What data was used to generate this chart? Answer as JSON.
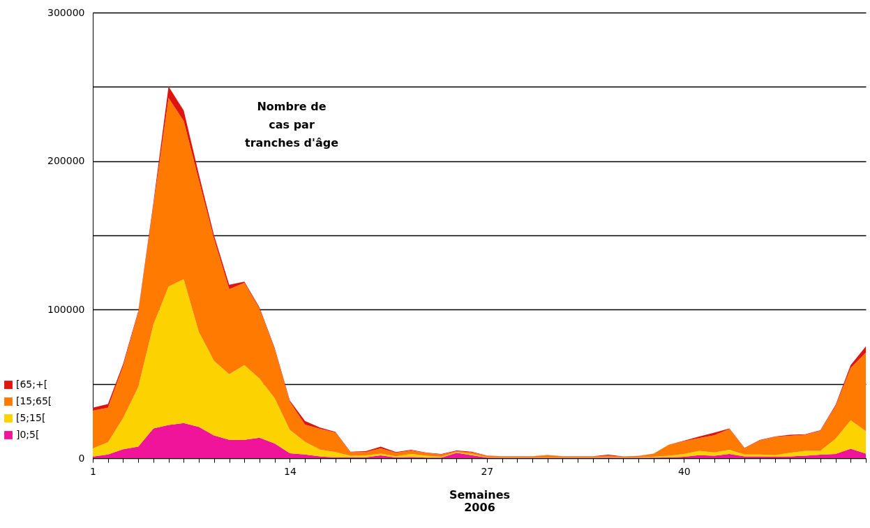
{
  "chart_data": {
    "type": "area",
    "title": "Nombre de\ncas par\ntranches d'âge",
    "xlabel": "Semaines\n2006",
    "stacked": true,
    "grid": "y",
    "legend": "bottom left",
    "x": [
      1,
      2,
      3,
      4,
      5,
      6,
      7,
      8,
      9,
      10,
      11,
      12,
      13,
      14,
      15,
      16,
      17,
      18,
      19,
      20,
      21,
      22,
      23,
      24,
      25,
      26,
      27,
      28,
      29,
      30,
      31,
      32,
      33,
      34,
      35,
      36,
      37,
      38,
      39,
      40,
      41,
      42,
      43,
      44,
      45,
      46,
      47,
      48,
      49,
      50,
      51,
      52
    ],
    "xlim": [
      1,
      52
    ],
    "xticks": [
      1,
      {
        "value": 2,
        "label": null
      },
      {
        "value": 3,
        "label": null
      },
      {
        "value": 4,
        "label": null
      },
      {
        "value": 5,
        "label": null
      },
      {
        "value": 6,
        "label": null
      },
      {
        "value": 7,
        "label": null
      },
      {
        "value": 8,
        "label": null
      },
      {
        "value": 9,
        "label": null
      },
      {
        "value": 10,
        "label": null
      },
      {
        "value": 11,
        "label": null
      },
      {
        "value": 12,
        "label": null
      },
      {
        "value": 13,
        "label": null
      },
      14,
      {
        "value": 15,
        "label": null
      },
      {
        "value": 16,
        "label": null
      },
      {
        "value": 17,
        "label": null
      },
      {
        "value": 18,
        "label": null
      },
      {
        "value": 19,
        "label": null
      },
      {
        "value": 20,
        "label": null
      },
      {
        "value": 21,
        "label": null
      },
      {
        "value": 22,
        "label": null
      },
      {
        "value": 23,
        "label": null
      },
      {
        "value": 24,
        "label": null
      },
      {
        "value": 25,
        "label": null
      },
      {
        "value": 26,
        "label": null
      },
      27,
      {
        "value": 28,
        "label": null
      },
      {
        "value": 29,
        "label": null
      },
      {
        "value": 30,
        "label": null
      },
      {
        "value": 31,
        "label": null
      },
      {
        "value": 32,
        "label": null
      },
      {
        "value": 33,
        "label": null
      },
      {
        "value": 34,
        "label": null
      },
      {
        "value": 35,
        "label": null
      },
      {
        "value": 36,
        "label": null
      },
      {
        "value": 37,
        "label": null
      },
      {
        "value": 38,
        "label": null
      },
      {
        "value": 39,
        "label": null
      },
      40,
      {
        "value": 41,
        "label": null
      },
      {
        "value": 42,
        "label": null
      },
      {
        "value": 43,
        "label": null
      },
      {
        "value": 44,
        "label": null
      },
      {
        "value": 45,
        "label": null
      },
      {
        "value": 46,
        "label": null
      },
      {
        "value": 47,
        "label": null
      },
      {
        "value": 48,
        "label": null
      },
      {
        "value": 49,
        "label": null
      },
      {
        "value": 50,
        "label": null
      },
      {
        "value": 51,
        "label": null
      },
      {
        "value": 52,
        "label": null
      }
    ],
    "ylim": [
      0,
      300000
    ],
    "yticks": [
      0,
      {
        "value": 50000,
        "label": null
      },
      100000,
      {
        "value": 150000,
        "label": null
      },
      200000,
      {
        "value": 250000,
        "label": null
      },
      300000
    ],
    "series": [
      {
        "name": "]0;5[",
        "color": "#f0149b",
        "values": [
          1000,
          2500,
          6000,
          7800,
          20000,
          22300,
          23600,
          21000,
          15300,
          12400,
          12400,
          13700,
          9900,
          3300,
          2500,
          1200,
          500,
          500,
          600,
          1900,
          500,
          800,
          300,
          300,
          3600,
          2000,
          300,
          200,
          200,
          200,
          200,
          200,
          200,
          200,
          300,
          200,
          200,
          300,
          500,
          900,
          2000,
          1600,
          2800,
          1200,
          1200,
          900,
          1200,
          1600,
          2400,
          2800,
          6300,
          3100
        ]
      },
      {
        "name": "[5;15[",
        "color": "#fcd200",
        "values": [
          5600,
          8200,
          21000,
          40200,
          70000,
          93200,
          96900,
          64000,
          50200,
          44200,
          50300,
          39900,
          30500,
          15700,
          8500,
          4600,
          3600,
          1100,
          1300,
          1200,
          800,
          2000,
          1300,
          600,
          500,
          800,
          300,
          300,
          300,
          300,
          300,
          300,
          300,
          300,
          400,
          300,
          300,
          600,
          1100,
          1900,
          2900,
          2300,
          2800,
          1300,
          1300,
          1100,
          2400,
          3300,
          2500,
          10200,
          19200,
          15100
        ]
      },
      {
        "name": "[15;65[",
        "color": "#ff7a00",
        "values": [
          25400,
          23300,
          35000,
          50000,
          80000,
          127000,
          106500,
          102000,
          82200,
          57200,
          55300,
          47000,
          33000,
          19000,
          11600,
          14000,
          13200,
          2500,
          2200,
          3500,
          2300,
          2400,
          1900,
          1600,
          600,
          1100,
          1000,
          700,
          700,
          700,
          1500,
          700,
          700,
          700,
          1000,
          600,
          900,
          2100,
          7400,
          8600,
          8600,
          11500,
          14000,
          4200,
          9400,
          12300,
          11400,
          10800,
          13600,
          21900,
          35300,
          52800
        ]
      },
      {
        "name": "[65;+[",
        "color": "#e0140f",
        "values": [
          2000,
          2500,
          1500,
          1000,
          2000,
          7800,
          7000,
          4000,
          2300,
          2900,
          800,
          900,
          800,
          800,
          2400,
          800,
          500,
          300,
          600,
          1200,
          500,
          500,
          300,
          300,
          500,
          500,
          200,
          100,
          100,
          100,
          100,
          100,
          100,
          100,
          600,
          100,
          100,
          100,
          100,
          300,
          1100,
          1800,
          400,
          200,
          300,
          300,
          700,
          400,
          300,
          800,
          1900,
          4200
        ]
      }
    ]
  }
}
